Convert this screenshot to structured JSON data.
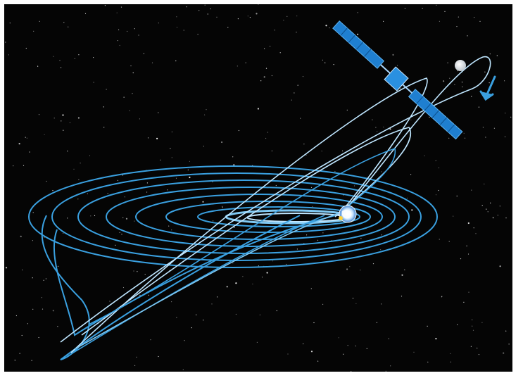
{
  "scene": {
    "subject": "spacecraft-spiral-orbit-illustration",
    "colors": {
      "frame": "#ffffff",
      "space": "#050505",
      "orbit": "#3aa0e0",
      "orbit_highlight": "#bfe6ff",
      "spacecraft_panel": "#1f7fd0",
      "moon": "#e9edf0"
    },
    "icons": {
      "spacecraft": "satellite-icon",
      "moon": "moon-icon",
      "earth": "earth-icon",
      "direction": "arrow-icon"
    }
  }
}
